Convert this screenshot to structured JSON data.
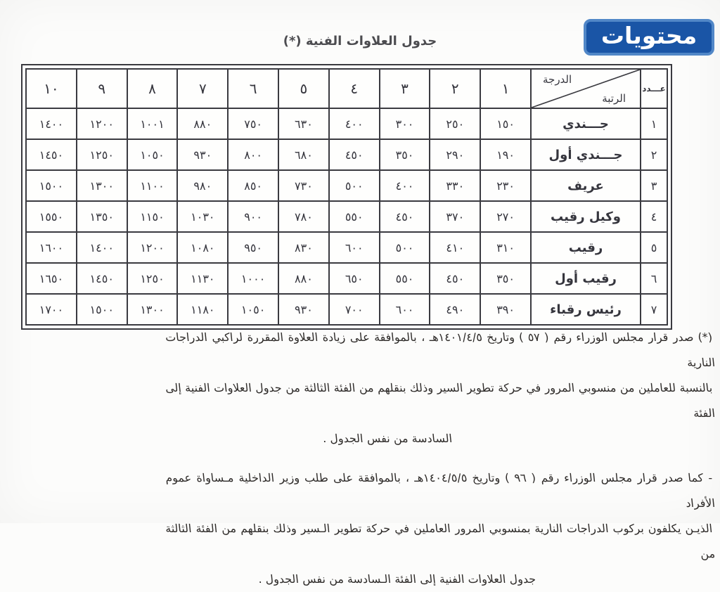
{
  "logo": {
    "text": "محتويات",
    "fill_color": "#1a55a6",
    "border_color": "#5187c7",
    "text_color": "#ffffff"
  },
  "title": "جدول العلاوات الفنية  (*)",
  "table": {
    "count_header": "عـــدد",
    "grade_label": "الدرجة",
    "rank_label": "الرتبة",
    "degree_headers": [
      "١",
      "٢",
      "٣",
      "٤",
      "٥",
      "٦",
      "٧",
      "٨",
      "٩",
      "١٠"
    ],
    "rows": [
      {
        "num": "١",
        "rank": "جـــندي",
        "values": [
          "١٥٠",
          "٢٥٠",
          "٣٠٠",
          "٤٠٠",
          "٦٣٠",
          "٧٥٠",
          "٨٨٠",
          "١٠٠١",
          "١٢٠٠",
          "١٤٠٠"
        ]
      },
      {
        "num": "٢",
        "rank": "جـــندي أول",
        "values": [
          "١٩٠",
          "٢٩٠",
          "٣٥٠",
          "٤٥٠",
          "٦٨٠",
          "٨٠٠",
          "٩٣٠",
          "١٠٥٠",
          "١٢٥٠",
          "١٤٥٠"
        ]
      },
      {
        "num": "٣",
        "rank": "عريف",
        "values": [
          "٢٣٠",
          "٣٣٠",
          "٤٠٠",
          "٥٠٠",
          "٧٣٠",
          "٨٥٠",
          "٩٨٠",
          "١١٠٠",
          "١٣٠٠",
          "١٥٠٠"
        ]
      },
      {
        "num": "٤",
        "rank": "وكيل رقيب",
        "values": [
          "٢٧٠",
          "٣٧٠",
          "٤٥٠",
          "٥٥٠",
          "٧٨٠",
          "٩٠٠",
          "١٠٣٠",
          "١١٥٠",
          "١٣٥٠",
          "١٥٥٠"
        ]
      },
      {
        "num": "٥",
        "rank": "رقيب",
        "values": [
          "٣١٠",
          "٤١٠",
          "٥٠٠",
          "٦٠٠",
          "٨٣٠",
          "٩٥٠",
          "١٠٨٠",
          "١٢٠٠",
          "١٤٠٠",
          "١٦٠٠"
        ]
      },
      {
        "num": "٦",
        "rank": "رقيب أول",
        "values": [
          "٣٥٠",
          "٤٥٠",
          "٥٥٠",
          "٦٥٠",
          "٨٨٠",
          "١٠٠٠",
          "١١٣٠",
          "١٢٥٠",
          "١٤٥٠",
          "١٦٥٠"
        ]
      },
      {
        "num": "٧",
        "rank": "رئيس رقباء",
        "values": [
          "٣٩٠",
          "٤٩٠",
          "٦٠٠",
          "٧٠٠",
          "٩٣٠",
          "١٠٥٠",
          "١١٨٠",
          "١٣٠٠",
          "١٥٠٠",
          "١٧٠٠"
        ]
      }
    ]
  },
  "footnotes": {
    "first_lines": [
      "(*) صدر قرار مجلس الوزراء رقم ( ٥٧ ) وتاريخ ١٤٠١/٤/٥هـ ، بالموافقة على زيادة العلاوة المقررة لراكبي الدراجات النارية",
      "بالنسبة للعاملين من منسوبي المرور في حركة تطوير السير وذلك بنقلهم من الفئة الثالثة من جدول العلاوات الفنية إلى الفئة",
      "السادسة من نفس الجدول ."
    ],
    "second_lines": [
      "- كما صدر قرار مجلس الوزراء رقم ( ٩٦ ) وتاريخ ١٤٠٤/٥/٥هـ ، بالموافقة على طلب وزير الداخلية مـساواة عموم الأفراد",
      "الذيـن يكلفون بركوب الدراجات النارية بمنسوبي المرور العاملين في حركة تطوير الـسير وذلك بنقلهم من الفئة الثالثة من",
      "جدول العلاوات الفنية إلى الفئة الـسادسة من نفس الجدول ."
    ]
  }
}
